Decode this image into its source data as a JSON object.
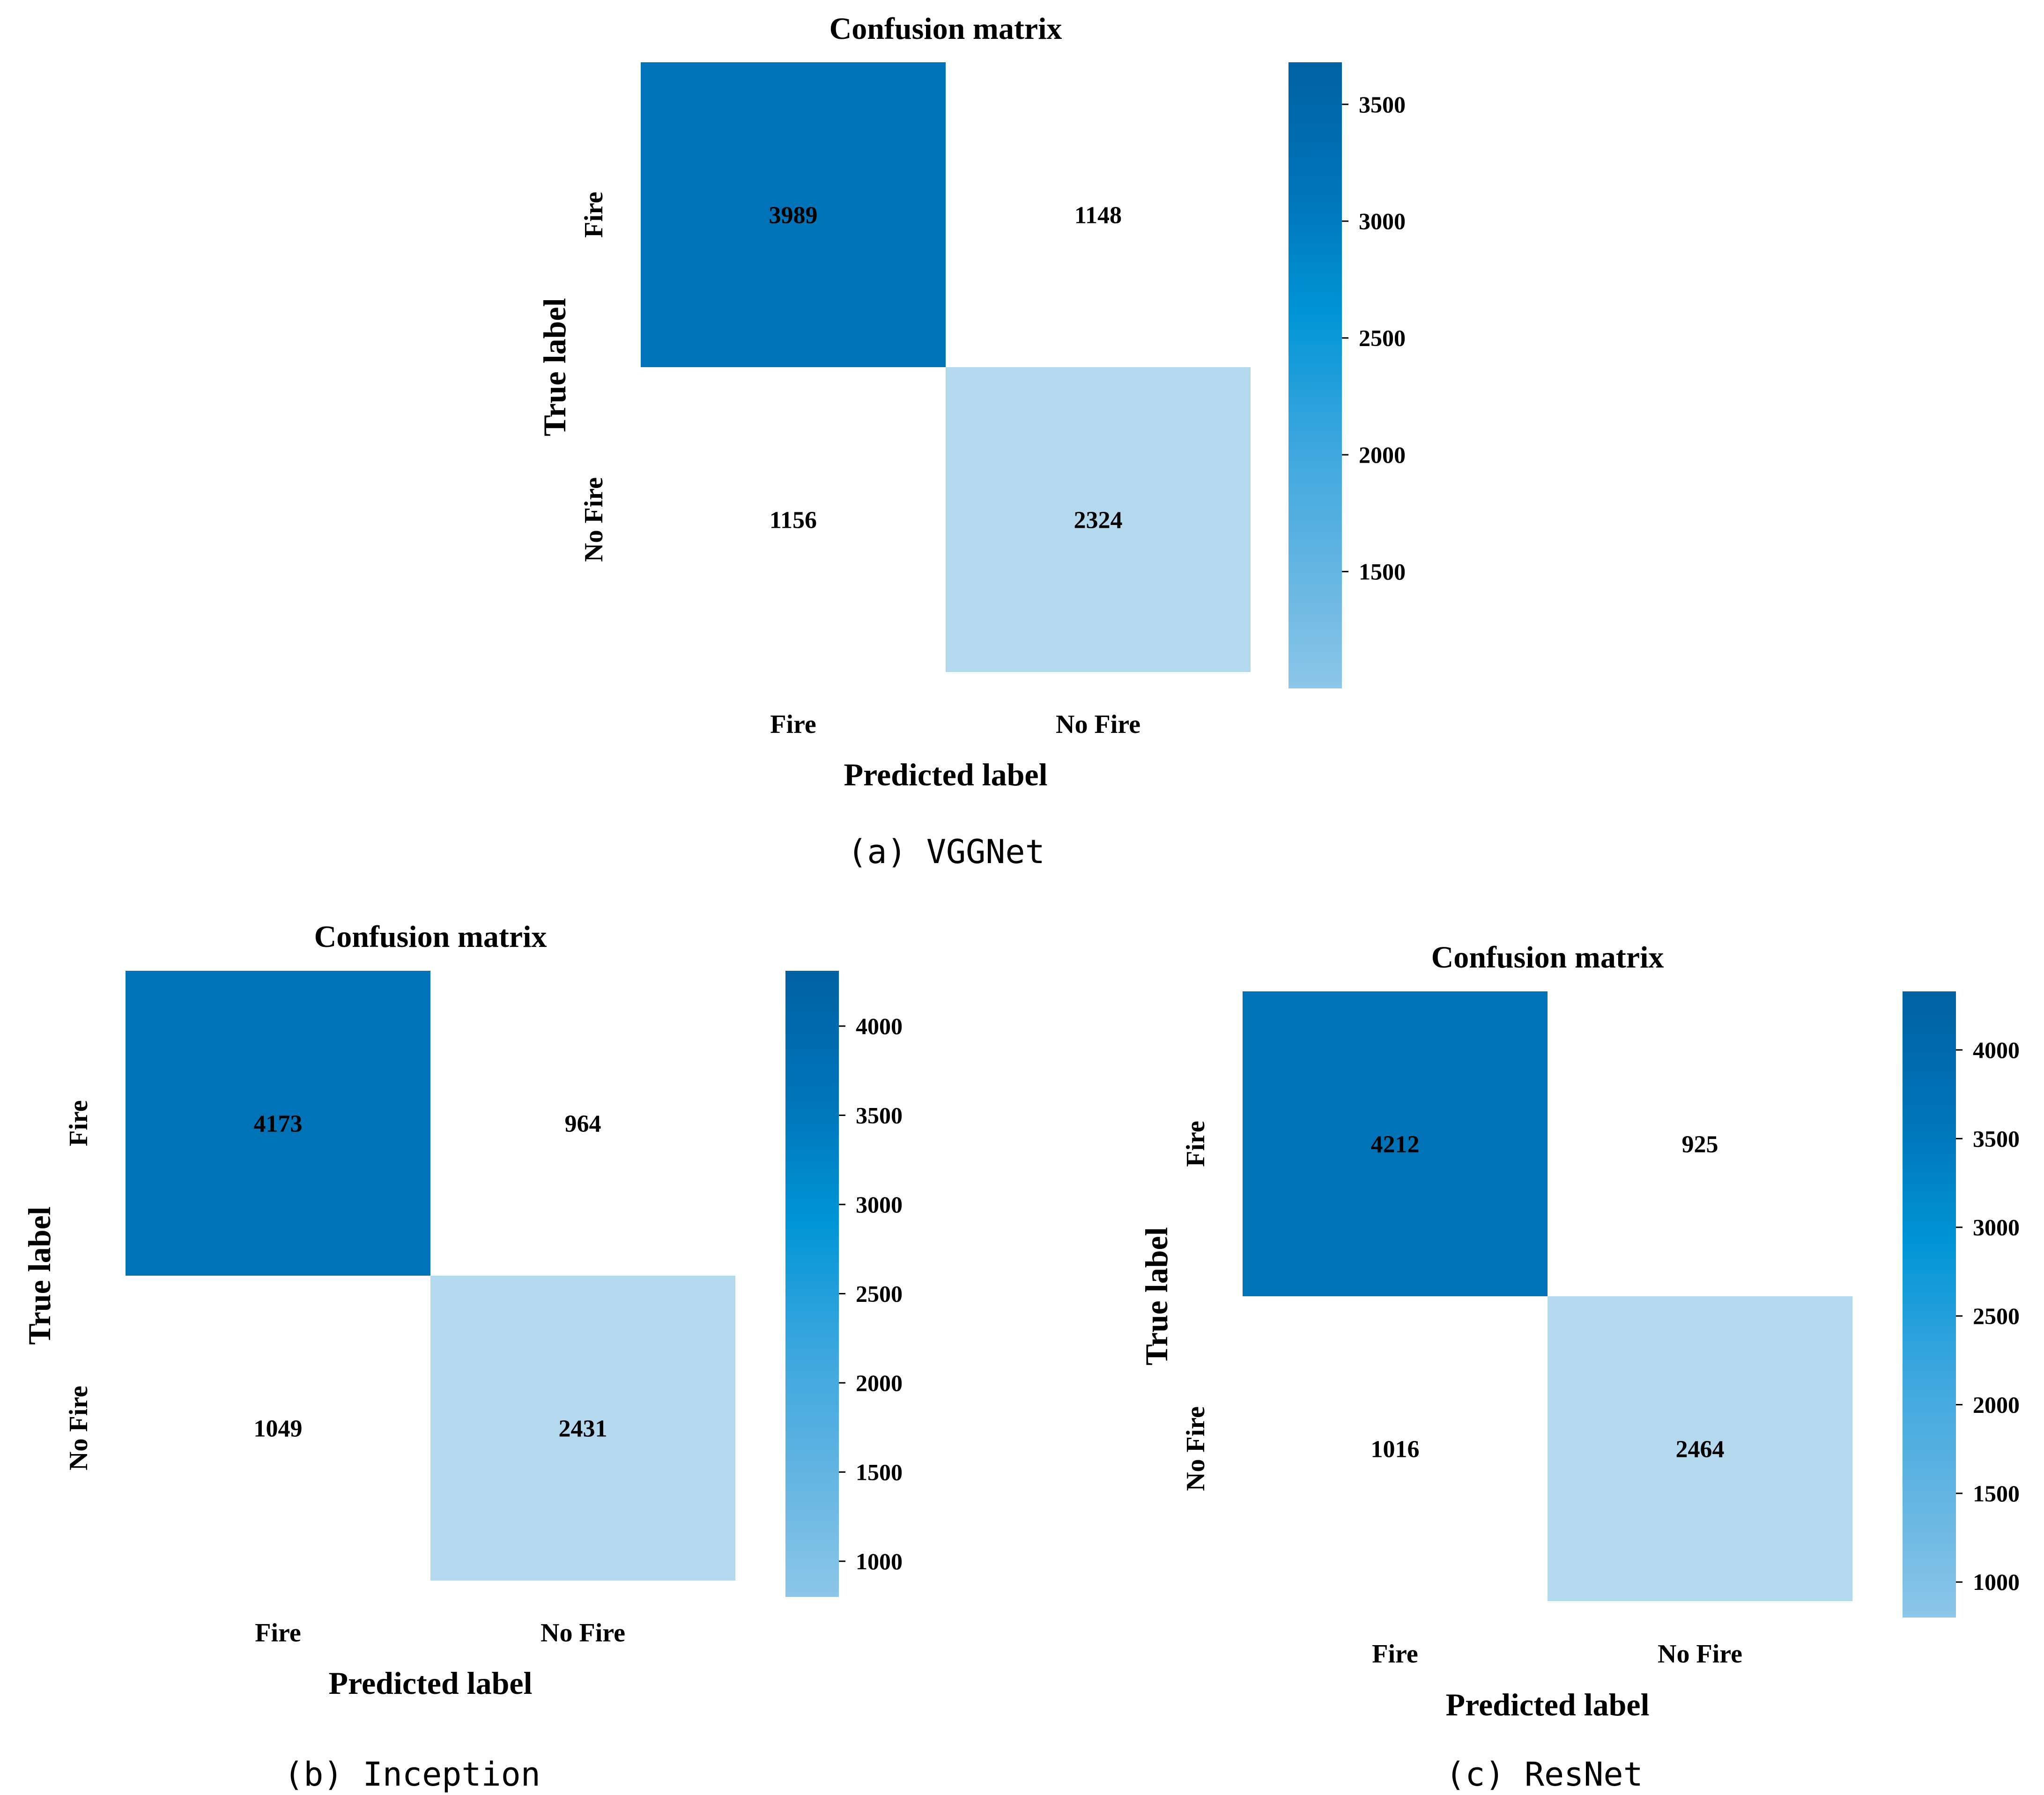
{
  "colors": {
    "dark": "#0072b7",
    "light": "#b4d8ee",
    "white": "#ffffff",
    "cb_stops": [
      "#0062a3",
      "#0073b8",
      "#0095d6",
      "#3aa6de",
      "#62b4e2",
      "#8cc6e8"
    ]
  },
  "chart_data": [
    {
      "type": "heatmap",
      "name": "panel-a",
      "title": "Confusion matrix",
      "xlabel": "Predicted label",
      "ylabel": "True label",
      "x_ticks": [
        "Fire",
        "No Fire"
      ],
      "y_ticks": [
        "Fire",
        "No Fire"
      ],
      "values": [
        [
          3989,
          1148
        ],
        [
          1156,
          2324
        ]
      ],
      "cell_colors": [
        [
          "dark",
          "white"
        ],
        [
          "white",
          "light"
        ]
      ],
      "colorbar": {
        "range": [
          1000,
          3680
        ],
        "ticks": [
          "1500",
          "2000",
          "2500",
          "3000",
          "3500"
        ]
      },
      "caption": "(a) VGGNet"
    },
    {
      "type": "heatmap",
      "name": "panel-b",
      "title": "Confusion matrix",
      "xlabel": "Predicted label",
      "ylabel": "True label",
      "x_ticks": [
        "Fire",
        "No Fire"
      ],
      "y_ticks": [
        "Fire",
        "No Fire"
      ],
      "values": [
        [
          4173,
          964
        ],
        [
          1049,
          2431
        ]
      ],
      "cell_colors": [
        [
          "dark",
          "white"
        ],
        [
          "white",
          "light"
        ]
      ],
      "colorbar": {
        "range": [
          800,
          4310
        ],
        "ticks": [
          "1000",
          "1500",
          "2000",
          "2500",
          "3000",
          "3500",
          "4000"
        ]
      },
      "caption": "(b) Inception"
    },
    {
      "type": "heatmap",
      "name": "panel-c",
      "title": "Confusion matrix",
      "xlabel": "Predicted label",
      "ylabel": "True label",
      "x_ticks": [
        "Fire",
        "No Fire"
      ],
      "y_ticks": [
        "Fire",
        "No Fire"
      ],
      "values": [
        [
          4212,
          925
        ],
        [
          1016,
          2464
        ]
      ],
      "cell_colors": [
        [
          "dark",
          "white"
        ],
        [
          "white",
          "light"
        ]
      ],
      "colorbar": {
        "range": [
          800,
          4330
        ],
        "ticks": [
          "1000",
          "1500",
          "2000",
          "2500",
          "3000",
          "3500",
          "4000"
        ]
      },
      "caption": "(c) ResNet"
    }
  ]
}
